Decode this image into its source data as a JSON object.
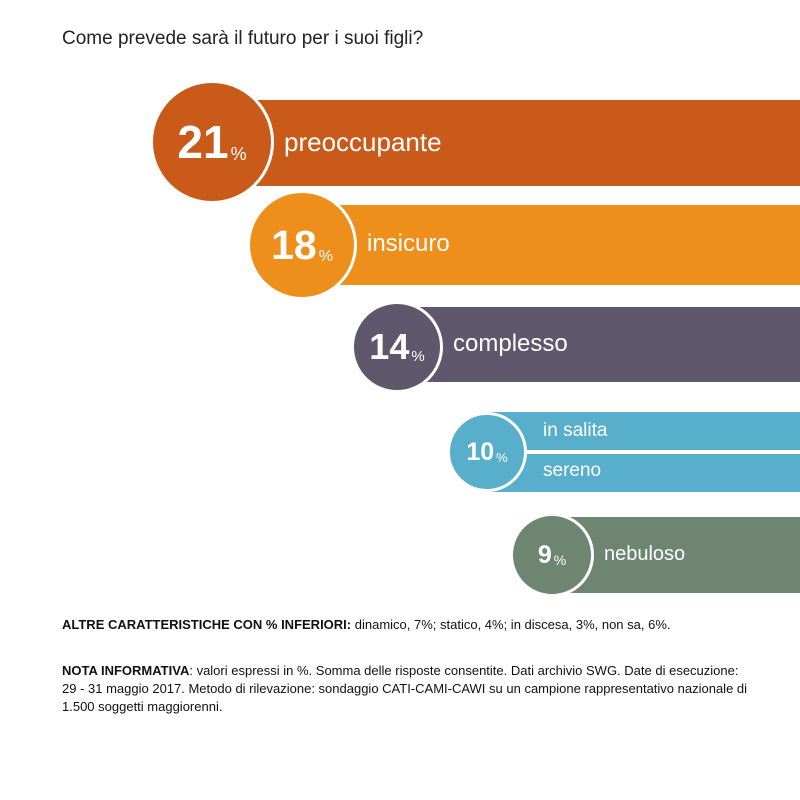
{
  "title": "Come prevede sarà il futuro per i suoi figli?",
  "chart_data": {
    "type": "bar",
    "title": "Come prevede sarà il futuro per i suoi figli?",
    "unit": "%",
    "items": [
      {
        "labels": [
          "preoccupante"
        ],
        "value": 21,
        "color": "#c95a1a"
      },
      {
        "labels": [
          "insicuro"
        ],
        "value": 18,
        "color": "#ef8f1b"
      },
      {
        "labels": [
          "complesso"
        ],
        "value": 14,
        "color": "#5f576b"
      },
      {
        "labels": [
          "in salita",
          "sereno"
        ],
        "value": 10,
        "color": "#58afcb"
      },
      {
        "labels": [
          "nebuloso"
        ],
        "value": 9,
        "color": "#6e8671"
      }
    ]
  },
  "footer": {
    "other_label": "ALTRE CARATTERISTICHE CON % INFERIORI:",
    "other_text": " dinamico, 7%; statico, 4%; in discesa, 3%, non sa, 6%.",
    "note_label": "NOTA INFORMATIVA",
    "note_text": ": valori espressi in %. Somma delle risposte consentite. Dati archivio SWG. Date di esecuzione: 29 - 31 maggio 2017. Metodo di rilevazione: sondaggio CATI-CAMI-CAWI su un campione rappresentativo nazionale di 1.500 soggetti maggiorenni."
  }
}
